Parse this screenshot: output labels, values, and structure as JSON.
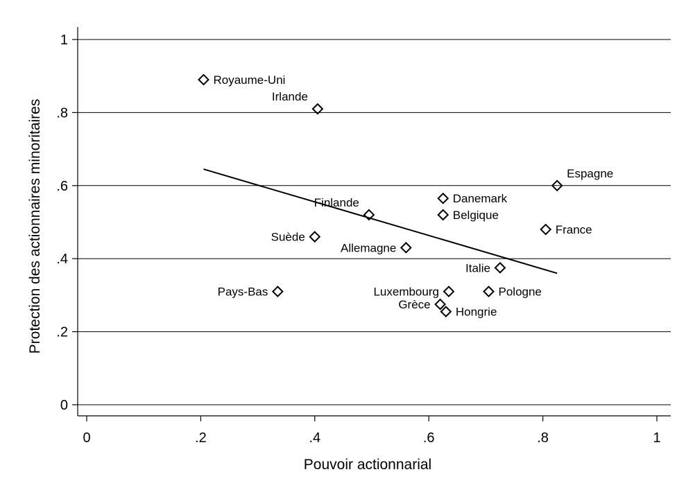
{
  "chart_data": {
    "type": "scatter",
    "title": "",
    "xlabel": "Pouvoir actionnarial",
    "ylabel": "Protection des actionnaires minoritaires",
    "xlim": [
      0,
      1
    ],
    "ylim": [
      0,
      1
    ],
    "xticks": [
      "0",
      ".2",
      ".4",
      ".6",
      ".8",
      "1"
    ],
    "yticks": [
      "0",
      ".2",
      ".4",
      ".6",
      ".8",
      "1"
    ],
    "grid": "horizontal",
    "legend": "none",
    "marker": "hollow-diamond",
    "marker_color": "#000000",
    "line_color": "#000000",
    "points": [
      {
        "label": "Royaume-Uni",
        "x": 0.205,
        "y": 0.89,
        "label_pos": "right"
      },
      {
        "label": "Irlande",
        "x": 0.405,
        "y": 0.81,
        "label_pos": "upper-left"
      },
      {
        "label": "Espagne",
        "x": 0.825,
        "y": 0.6,
        "label_pos": "upper-right"
      },
      {
        "label": "Danemark",
        "x": 0.625,
        "y": 0.565,
        "label_pos": "right"
      },
      {
        "label": "Finlande",
        "x": 0.495,
        "y": 0.52,
        "label_pos": "upper-left"
      },
      {
        "label": "Belgique",
        "x": 0.625,
        "y": 0.52,
        "label_pos": "right"
      },
      {
        "label": "France",
        "x": 0.805,
        "y": 0.48,
        "label_pos": "right"
      },
      {
        "label": "Suède",
        "x": 0.4,
        "y": 0.46,
        "label_pos": "left"
      },
      {
        "label": "Allemagne",
        "x": 0.56,
        "y": 0.43,
        "label_pos": "left"
      },
      {
        "label": "Italie",
        "x": 0.725,
        "y": 0.375,
        "label_pos": "left"
      },
      {
        "label": "Pays-Bas",
        "x": 0.335,
        "y": 0.31,
        "label_pos": "left"
      },
      {
        "label": "Luxembourg",
        "x": 0.635,
        "y": 0.31,
        "label_pos": "left"
      },
      {
        "label": "Pologne",
        "x": 0.705,
        "y": 0.31,
        "label_pos": "right"
      },
      {
        "label": "Grèce",
        "x": 0.62,
        "y": 0.275,
        "label_pos": "left"
      },
      {
        "label": "Hongrie",
        "x": 0.63,
        "y": 0.255,
        "label_pos": "right"
      }
    ],
    "fit_line": {
      "x": [
        0.205,
        0.825
      ],
      "y": [
        0.645,
        0.36
      ]
    }
  }
}
